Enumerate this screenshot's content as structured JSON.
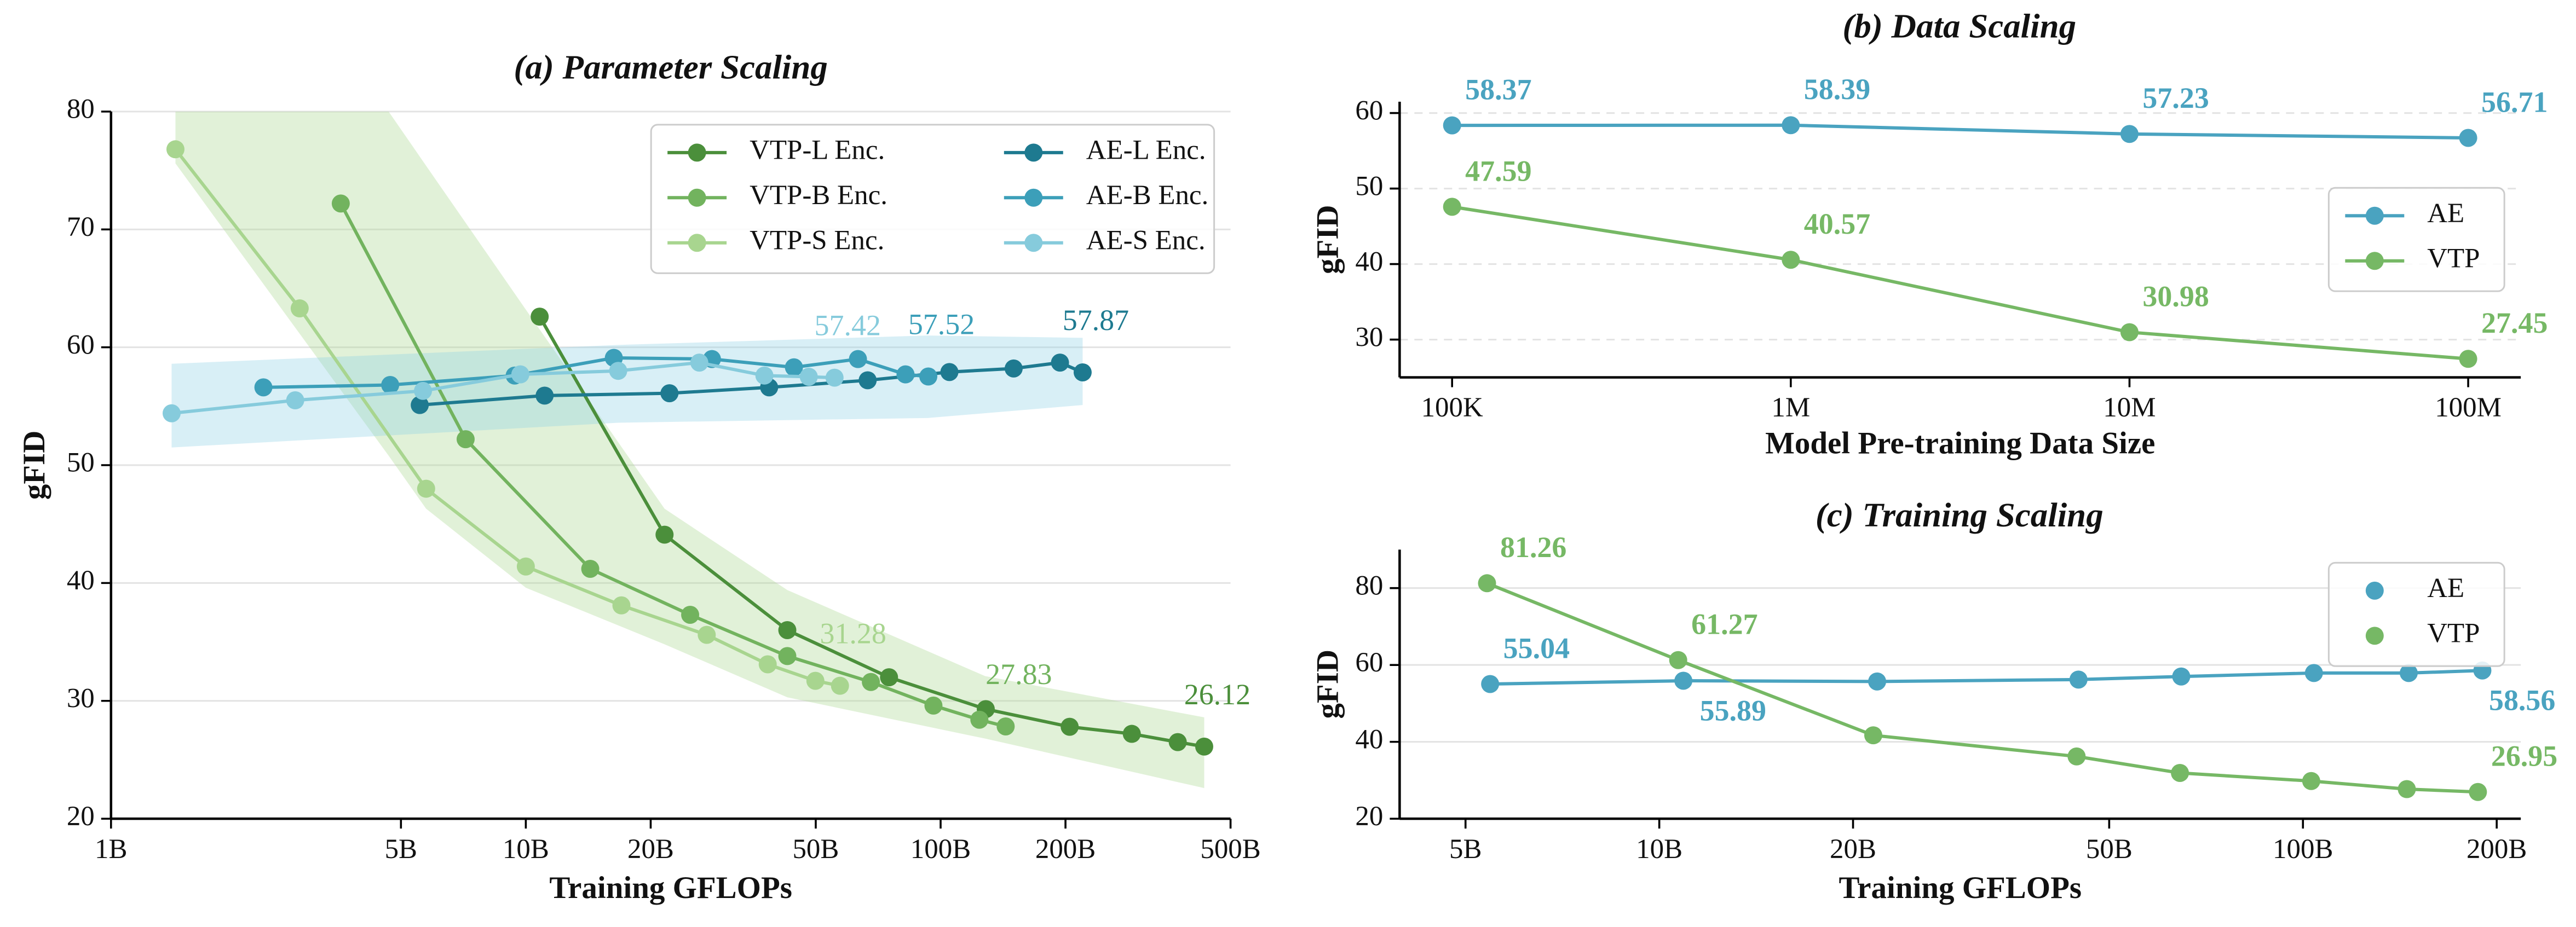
{
  "chart_data": [
    {
      "type": "line",
      "title": "(a) Parameter Scaling",
      "xlabel": "Training GFLOPs",
      "ylabel": "gFID",
      "xscale": "log",
      "xlim": [
        1,
        500
      ],
      "xticks": [
        {
          "value": 1,
          "label": "1B"
        },
        {
          "value": 5,
          "label": "5B"
        },
        {
          "value": 10,
          "label": "10B"
        },
        {
          "value": 20,
          "label": "20B"
        },
        {
          "value": 50,
          "label": "50B"
        },
        {
          "value": 100,
          "label": "100B"
        },
        {
          "value": 200,
          "label": "200B"
        },
        {
          "value": 500,
          "label": "500B"
        }
      ],
      "ylim": [
        20,
        80
      ],
      "yticks": [
        20,
        30,
        40,
        50,
        60,
        70,
        80
      ],
      "grid": true,
      "legend": "upper right",
      "bands": [
        {
          "color": "#a9d68f",
          "x": [
            1.43,
            4.67,
            5.75,
            10,
            21.6,
            42.7,
            128,
            432
          ],
          "lower": [
            75.6,
            50.8,
            46.3,
            39.6,
            34.8,
            30.3,
            26.8,
            22.6
          ],
          "upper": [
            80,
            80,
            75.4,
            63.2,
            46.3,
            39.4,
            32.1,
            28.6
          ]
        },
        {
          "color": "#8fd0e6",
          "x": [
            1.4,
            16.7,
            93,
            220
          ],
          "lower": [
            51.5,
            53.6,
            54.0,
            55.1
          ],
          "upper": [
            58.6,
            60.2,
            61.0,
            60.8
          ]
        }
      ],
      "series": [
        {
          "name": "VTP-L Enc.",
          "color": "#4b8f3b",
          "x": [
            10.8,
            21.6,
            42.7,
            75.1,
            128.5,
            204.7,
            289,
            373,
            432
          ],
          "values": [
            62.6,
            44.1,
            36.0,
            32.0,
            29.3,
            27.8,
            27.2,
            26.5,
            26.12
          ],
          "value_labels": [
            null,
            null,
            null,
            null,
            null,
            null,
            null,
            null,
            "26.12"
          ]
        },
        {
          "name": "VTP-B Enc.",
          "color": "#72b35e",
          "x": [
            3.58,
            7.16,
            14.3,
            24.9,
            42.7,
            67.9,
            96.1,
            124,
            143.5
          ],
          "values": [
            72.2,
            52.2,
            41.2,
            37.3,
            33.8,
            31.6,
            29.6,
            28.4,
            27.83
          ],
          "value_labels": [
            null,
            null,
            null,
            null,
            null,
            null,
            null,
            null,
            "27.83"
          ]
        },
        {
          "name": "VTP-S Enc.",
          "color": "#a8d58f",
          "x": [
            1.43,
            2.85,
            5.75,
            10.0,
            17.0,
            27.3,
            38.3,
            49.9,
            57.2
          ],
          "values": [
            76.8,
            63.3,
            48.0,
            41.4,
            38.1,
            35.6,
            33.1,
            31.7,
            31.28
          ],
          "value_labels": [
            null,
            null,
            null,
            null,
            null,
            null,
            null,
            null,
            "31.28"
          ]
        },
        {
          "name": "AE-L Enc.",
          "color": "#1e7a90",
          "x": [
            5.55,
            11.1,
            22.2,
            38.6,
            66.7,
            105,
            150,
            194,
            220
          ],
          "values": [
            55.1,
            55.9,
            56.1,
            56.6,
            57.2,
            57.9,
            58.2,
            58.7,
            57.87
          ],
          "value_labels": [
            null,
            null,
            null,
            null,
            null,
            null,
            null,
            null,
            "57.87"
          ]
        },
        {
          "name": "AE-B Enc.",
          "color": "#3c9fb9",
          "x": [
            2.33,
            4.71,
            9.4,
            16.3,
            28.1,
            44.3,
            63.2,
            82.3,
            93.4
          ],
          "values": [
            56.6,
            56.8,
            57.6,
            59.1,
            59.0,
            58.3,
            59.0,
            57.7,
            57.52
          ],
          "value_labels": [
            null,
            null,
            null,
            null,
            null,
            null,
            null,
            null,
            "57.52"
          ]
        },
        {
          "name": "AE-S Enc.",
          "color": "#86cbdc",
          "x": [
            1.4,
            2.78,
            5.65,
            9.7,
            16.7,
            26.2,
            37.6,
            48.1,
            55.5
          ],
          "values": [
            54.4,
            55.5,
            56.3,
            57.7,
            58.0,
            58.7,
            57.6,
            57.5,
            57.42
          ],
          "value_labels": [
            null,
            null,
            null,
            null,
            null,
            null,
            null,
            null,
            "57.42"
          ]
        }
      ]
    },
    {
      "type": "line",
      "title": "(b) Data Scaling",
      "xlabel": "Model Pre-training Data Size",
      "ylabel": "gFID",
      "xscale": "log",
      "xlim": [
        70000,
        143000000
      ],
      "xticks": [
        {
          "value": 100000,
          "label": "100K"
        },
        {
          "value": 1000000,
          "label": "1M"
        },
        {
          "value": 10000000,
          "label": "10M"
        },
        {
          "value": 100000000,
          "label": "100M"
        }
      ],
      "ylim": [
        25,
        61.5
      ],
      "yticks": [
        30,
        40,
        50,
        60
      ],
      "grid": true,
      "grid_style": "dashed",
      "legend": "center right",
      "series": [
        {
          "name": "AE",
          "color": "#4aa3c0",
          "x": [
            100000,
            1000000,
            10000000,
            100000000
          ],
          "values": [
            58.37,
            58.39,
            57.23,
            56.71
          ],
          "value_labels": [
            "58.37",
            "58.39",
            "57.23",
            "56.71"
          ]
        },
        {
          "name": "VTP",
          "color": "#76b865",
          "x": [
            100000,
            1000000,
            10000000,
            100000000
          ],
          "values": [
            47.59,
            40.57,
            30.98,
            27.45
          ],
          "value_labels": [
            "47.59",
            "40.57",
            "30.98",
            "27.45"
          ]
        }
      ]
    },
    {
      "type": "line",
      "title": "(c) Training Scaling",
      "xlabel": "Training GFLOPs",
      "ylabel": "gFID",
      "xscale": "log",
      "xlim": [
        3.95,
        218
      ],
      "xticks": [
        {
          "value": 5,
          "label": "5B"
        },
        {
          "value": 10,
          "label": "10B"
        },
        {
          "value": 20,
          "label": "20B"
        },
        {
          "value": 50,
          "label": "50B"
        },
        {
          "value": 100,
          "label": "100B"
        },
        {
          "value": 200,
          "label": "200B"
        }
      ],
      "ylim": [
        20,
        90
      ],
      "yticks": [
        20,
        40,
        60,
        80
      ],
      "grid": true,
      "legend": "upper right",
      "legend_style": "marker",
      "series": [
        {
          "name": "AE",
          "color": "#4aa3c0",
          "x": [
            5.46,
            10.9,
            21.8,
            44.8,
            64.7,
            104,
            146,
            190
          ],
          "values": [
            55.04,
            55.89,
            55.7,
            56.2,
            57.0,
            57.9,
            57.9,
            58.56
          ],
          "value_labels": [
            "55.04",
            "55.89",
            null,
            null,
            null,
            null,
            null,
            "58.56"
          ]
        },
        {
          "name": "VTP",
          "color": "#76b865",
          "x": [
            5.4,
            10.7,
            21.5,
            44.5,
            64.4,
            103,
            145,
            187
          ],
          "values": [
            81.26,
            61.27,
            41.7,
            36.2,
            31.9,
            29.8,
            27.7,
            26.95
          ],
          "value_labels": [
            "81.26",
            "61.27",
            null,
            null,
            null,
            null,
            null,
            "26.95"
          ]
        }
      ]
    }
  ]
}
